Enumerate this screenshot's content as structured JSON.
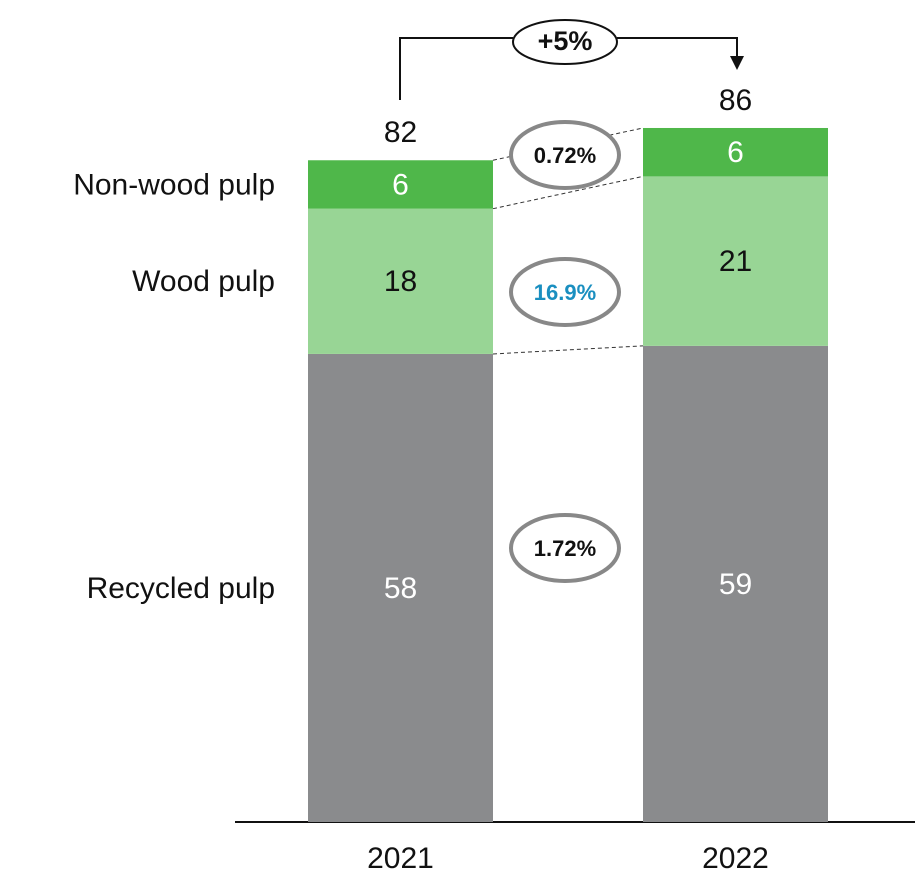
{
  "chart_data": {
    "type": "stacked_bar",
    "categories": [
      "2021",
      "2022"
    ],
    "series": [
      {
        "name": "Recycled pulp",
        "color": "#8a8b8d",
        "label_color": "#ffffff",
        "values": [
          58,
          59
        ]
      },
      {
        "name": "Wood pulp",
        "color": "#98d595",
        "label_color": "#111111",
        "values": [
          18,
          21
        ]
      },
      {
        "name": "Non-wood pulp",
        "color": "#4fb74a",
        "label_color": "#ffffff",
        "values": [
          6,
          6
        ]
      }
    ],
    "totals": [
      82,
      86
    ],
    "growth": "+5%",
    "segment_growth": [
      "1.72%",
      "16.9%",
      "0.72%"
    ],
    "segment_growth_colors": [
      "#111111",
      "#1a8fc0",
      "#111111"
    ]
  }
}
